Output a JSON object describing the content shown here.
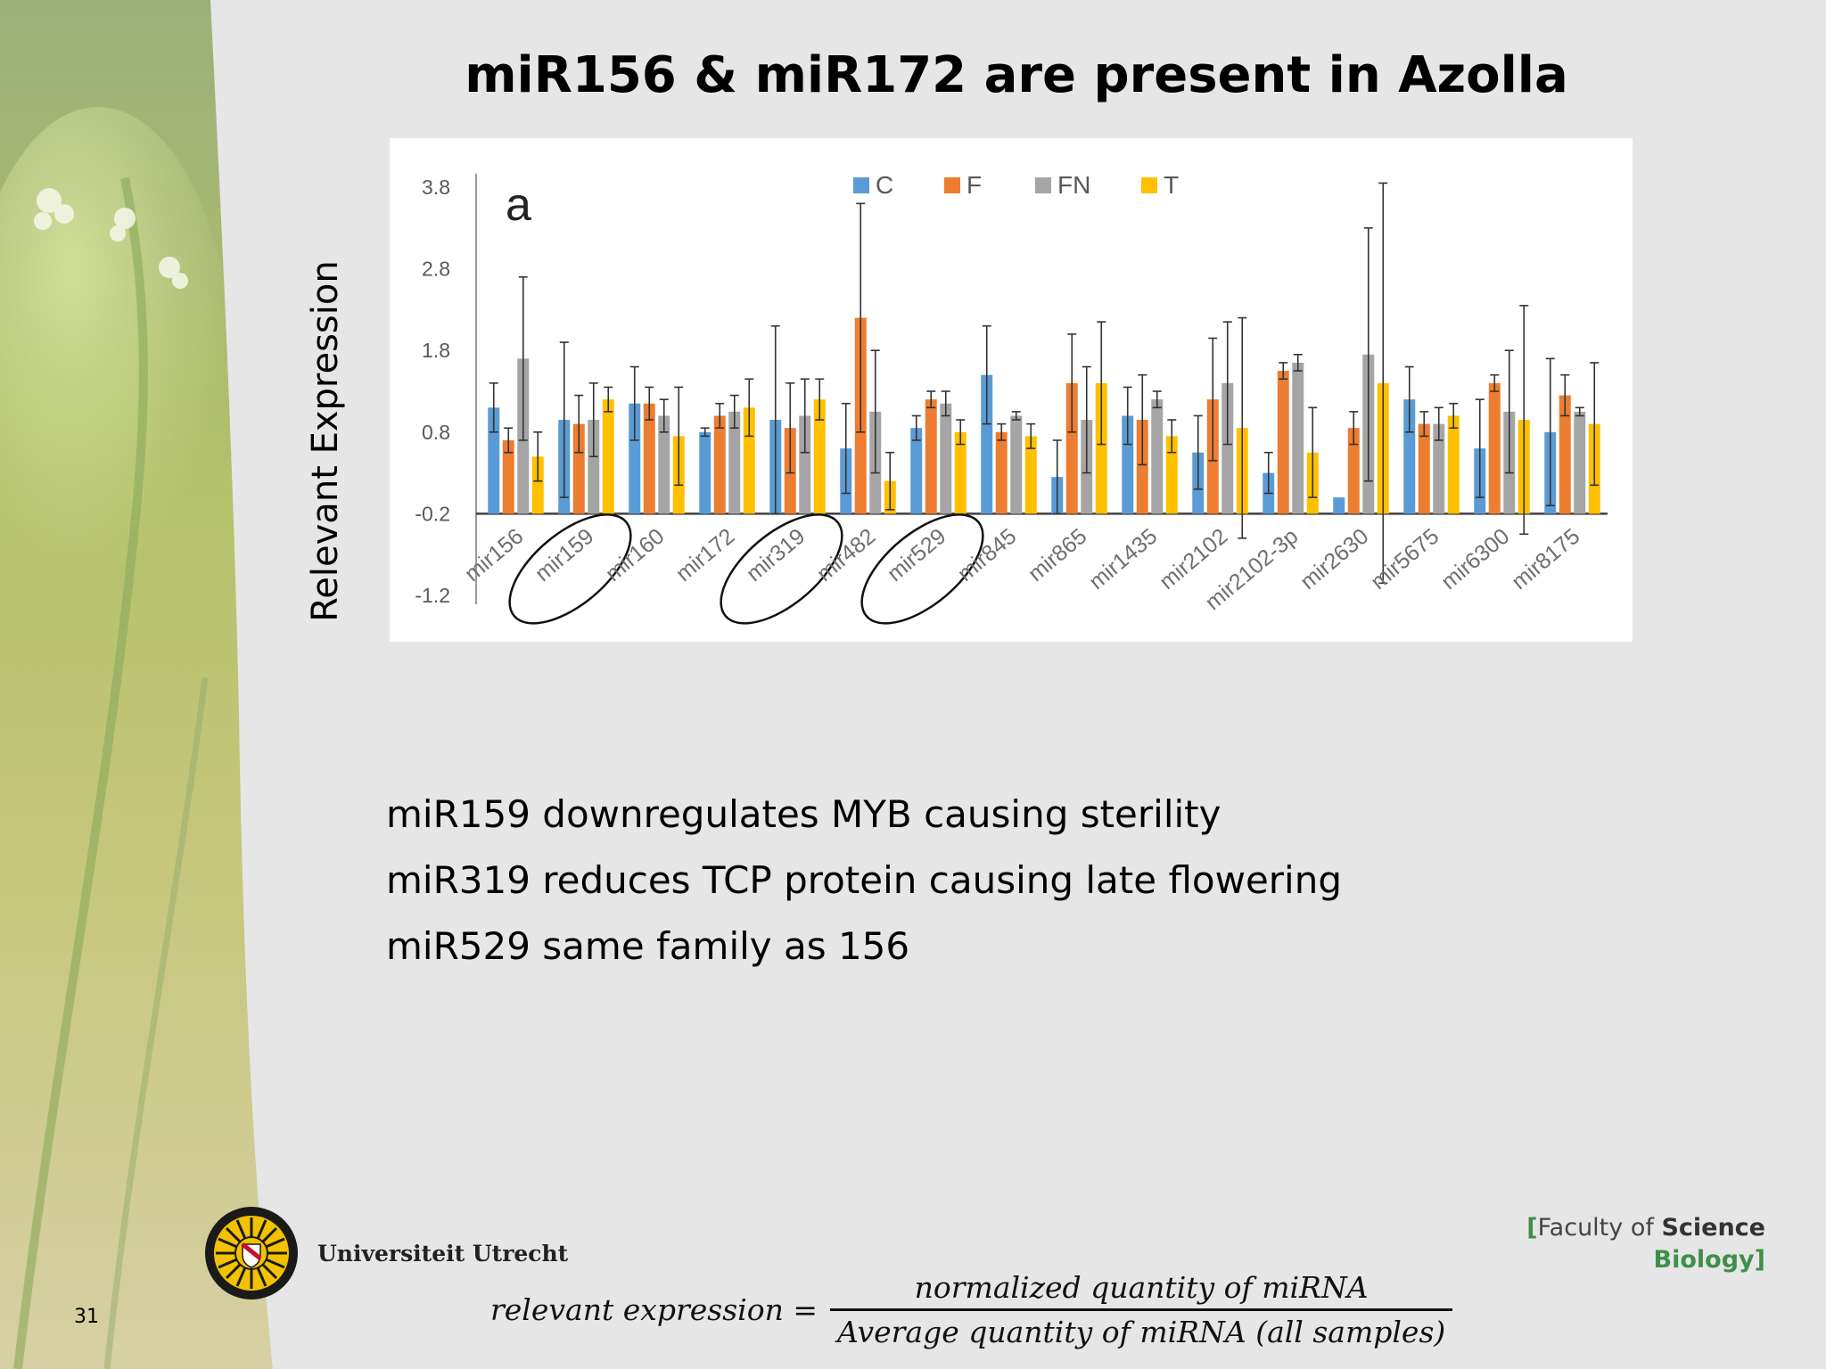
{
  "slide": {
    "title": "miR156 & miR172 are present in Azolla",
    "y_side_label": "Relevant Expression",
    "slide_number": "31"
  },
  "bullets": [
    "miR159 downregulates MYB causing sterility",
    "miR319 reduces TCP protein causing late flowering",
    "miR529 same family as 156"
  ],
  "footer": {
    "university": "Universiteit Utrecht",
    "faculty_open": "[",
    "faculty_of": "Faculty of ",
    "faculty_science": "Science",
    "faculty_biology": "Biology]"
  },
  "formula": {
    "lhs": "relevant expression =",
    "numerator": "normalized quantity of miRNA",
    "denominator": "Average quantity of miRNA (all samples)"
  },
  "chart_data": {
    "type": "bar",
    "panel_label": "a",
    "categories": [
      "mir156",
      "mir159",
      "mir160",
      "mir172",
      "mir319",
      "mir482",
      "mir529",
      "mir845",
      "mir865",
      "mir1435",
      "mir2102",
      "mir2102-3p",
      "mir2630",
      "mir5675",
      "mir6300",
      "mir8175"
    ],
    "series": [
      {
        "name": "C",
        "color": "#5b9bd5",
        "values": [
          1.1,
          0.95,
          1.15,
          0.8,
          0.95,
          0.6,
          0.85,
          1.5,
          0.25,
          1.0,
          0.55,
          0.3,
          0.0,
          1.2,
          0.6,
          0.8
        ],
        "errors": [
          0.3,
          0.95,
          0.45,
          0.05,
          1.15,
          0.55,
          0.15,
          0.6,
          0.45,
          0.35,
          0.45,
          0.25,
          0.0,
          0.4,
          0.6,
          0.9
        ]
      },
      {
        "name": "F",
        "color": "#ed7d31",
        "values": [
          0.7,
          0.9,
          1.15,
          1.0,
          0.85,
          2.2,
          1.2,
          0.8,
          1.4,
          0.95,
          1.2,
          1.55,
          0.85,
          0.9,
          1.4,
          1.25
        ],
        "errors": [
          0.15,
          0.35,
          0.2,
          0.15,
          0.55,
          1.4,
          0.1,
          0.1,
          0.6,
          0.55,
          0.75,
          0.1,
          0.2,
          0.15,
          0.1,
          0.25
        ]
      },
      {
        "name": "FN",
        "color": "#a5a5a5",
        "values": [
          1.7,
          0.95,
          1.0,
          1.05,
          1.0,
          1.05,
          1.15,
          1.0,
          0.95,
          1.2,
          1.4,
          1.65,
          1.75,
          0.9,
          1.05,
          1.05
        ],
        "errors": [
          1.0,
          0.45,
          0.2,
          0.2,
          0.45,
          0.75,
          0.15,
          0.05,
          0.65,
          0.1,
          0.75,
          0.1,
          1.55,
          0.2,
          0.75,
          0.05
        ]
      },
      {
        "name": "T",
        "color": "#ffc000",
        "values": [
          0.5,
          1.2,
          0.75,
          1.1,
          1.2,
          0.2,
          0.8,
          0.75,
          1.4,
          0.75,
          0.85,
          0.55,
          1.4,
          1.0,
          0.95,
          0.9
        ],
        "errors": [
          0.3,
          0.15,
          0.6,
          0.35,
          0.25,
          0.35,
          0.15,
          0.15,
          0.75,
          0.2,
          1.35,
          0.55,
          2.45,
          0.15,
          1.4,
          0.75
        ]
      }
    ],
    "yticks": [
      "3.8",
      "2.8",
      "1.8",
      "0.8",
      "-0.2",
      "-1.2"
    ],
    "ytick_values": [
      3.8,
      2.8,
      1.8,
      0.8,
      -0.2,
      -1.2
    ],
    "ylim": [
      -1.2,
      3.8
    ],
    "baseline": -0.2,
    "highlighted_categories": [
      "mir159",
      "mir319",
      "mir529"
    ],
    "legend_position": "top-center",
    "xlabel": "",
    "ylabel": "Relevant Expression"
  }
}
